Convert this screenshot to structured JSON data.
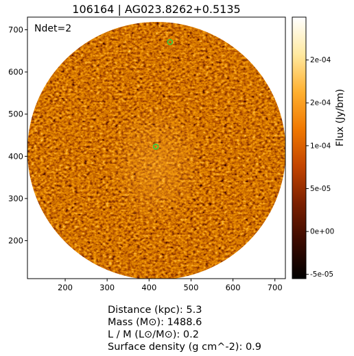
{
  "title": "106164 | AG023.8262+0.5135",
  "annotation": "Ndet=2",
  "x_ticks": [
    {
      "value": 200,
      "label": "200"
    },
    {
      "value": 300,
      "label": "300"
    },
    {
      "value": 400,
      "label": "400"
    },
    {
      "value": 500,
      "label": "500"
    },
    {
      "value": 600,
      "label": "600"
    },
    {
      "value": 700,
      "label": "700"
    }
  ],
  "y_ticks": [
    {
      "value": 200,
      "label": "200"
    },
    {
      "value": 300,
      "label": "300"
    },
    {
      "value": 400,
      "label": "400"
    },
    {
      "value": 500,
      "label": "500"
    },
    {
      "value": 600,
      "label": "600"
    },
    {
      "value": 700,
      "label": "700"
    }
  ],
  "x_range": [
    110,
    725
  ],
  "y_range": [
    110,
    730
  ],
  "colorbar": {
    "label": "Flux (Jy/bm)",
    "range": [
      -5.5e-05,
      0.00025
    ],
    "ticks": [
      {
        "value": -5e-05,
        "label": "-5e-05"
      },
      {
        "value": 0,
        "label": "0e+00"
      },
      {
        "value": 5e-05,
        "label": "5e-05"
      },
      {
        "value": 0.0001,
        "label": "1e-04"
      },
      {
        "value": 0.00015,
        "label": "2e-04"
      },
      {
        "value": 0.0002,
        "label": "2e-04"
      }
    ],
    "colors": [
      "#000000",
      "#3a0a00",
      "#7a1f00",
      "#c24400",
      "#f07800",
      "#ffb030",
      "#ffe9a0",
      "#ffffff"
    ]
  },
  "image": {
    "center": [
      418,
      413
    ],
    "radius": 308
  },
  "detections": [
    {
      "x": 416,
      "y": 423,
      "color": "#2ecc40"
    },
    {
      "x": 450,
      "y": 671,
      "color": "#2ecc40"
    }
  ],
  "info": {
    "distance": "Distance (kpc): 5.3",
    "mass": "Mass (M⊙): 1488.6",
    "lm": "L / M (L⊙/M⊙): 0.2",
    "surface_density": "Surface density (g cm^-2): 0.9"
  }
}
